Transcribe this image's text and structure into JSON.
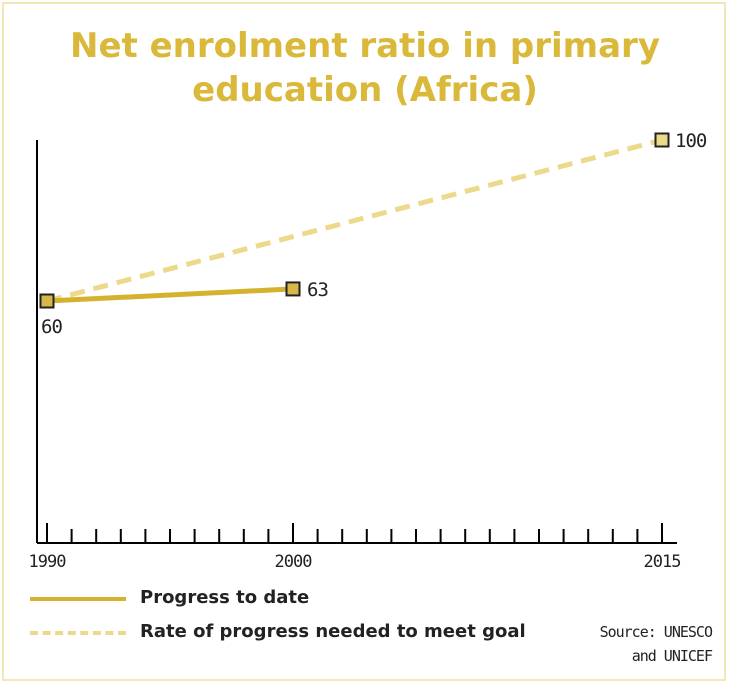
{
  "chart_data": {
    "type": "line",
    "title": "Net enrolment ratio in primary education (Africa)",
    "x_axis": {
      "range": [
        1990,
        2015
      ],
      "tick_labels": [
        "1990",
        "2000",
        "2015"
      ]
    },
    "series": [
      {
        "name": "Progress to date",
        "style": "solid",
        "color": "#d4b22e",
        "points": [
          {
            "x": 1990,
            "y": 60
          },
          {
            "x": 2000,
            "y": 63
          }
        ],
        "labels": [
          "60",
          "63"
        ]
      },
      {
        "name": "Rate of progress needed to meet goal",
        "style": "dashed",
        "color": "#ecd98a",
        "points": [
          {
            "x": 1990,
            "y": 60
          },
          {
            "x": 2015,
            "y": 100
          }
        ],
        "labels": [
          "",
          "100"
        ]
      }
    ],
    "source": [
      "Source: UNESCO",
      "and UNICEF"
    ],
    "colors": {
      "title": "#d9b83a",
      "marker_fill": "#d9b64a",
      "marker_fill_goal": "#ecd98a",
      "axis": "#000000"
    }
  }
}
